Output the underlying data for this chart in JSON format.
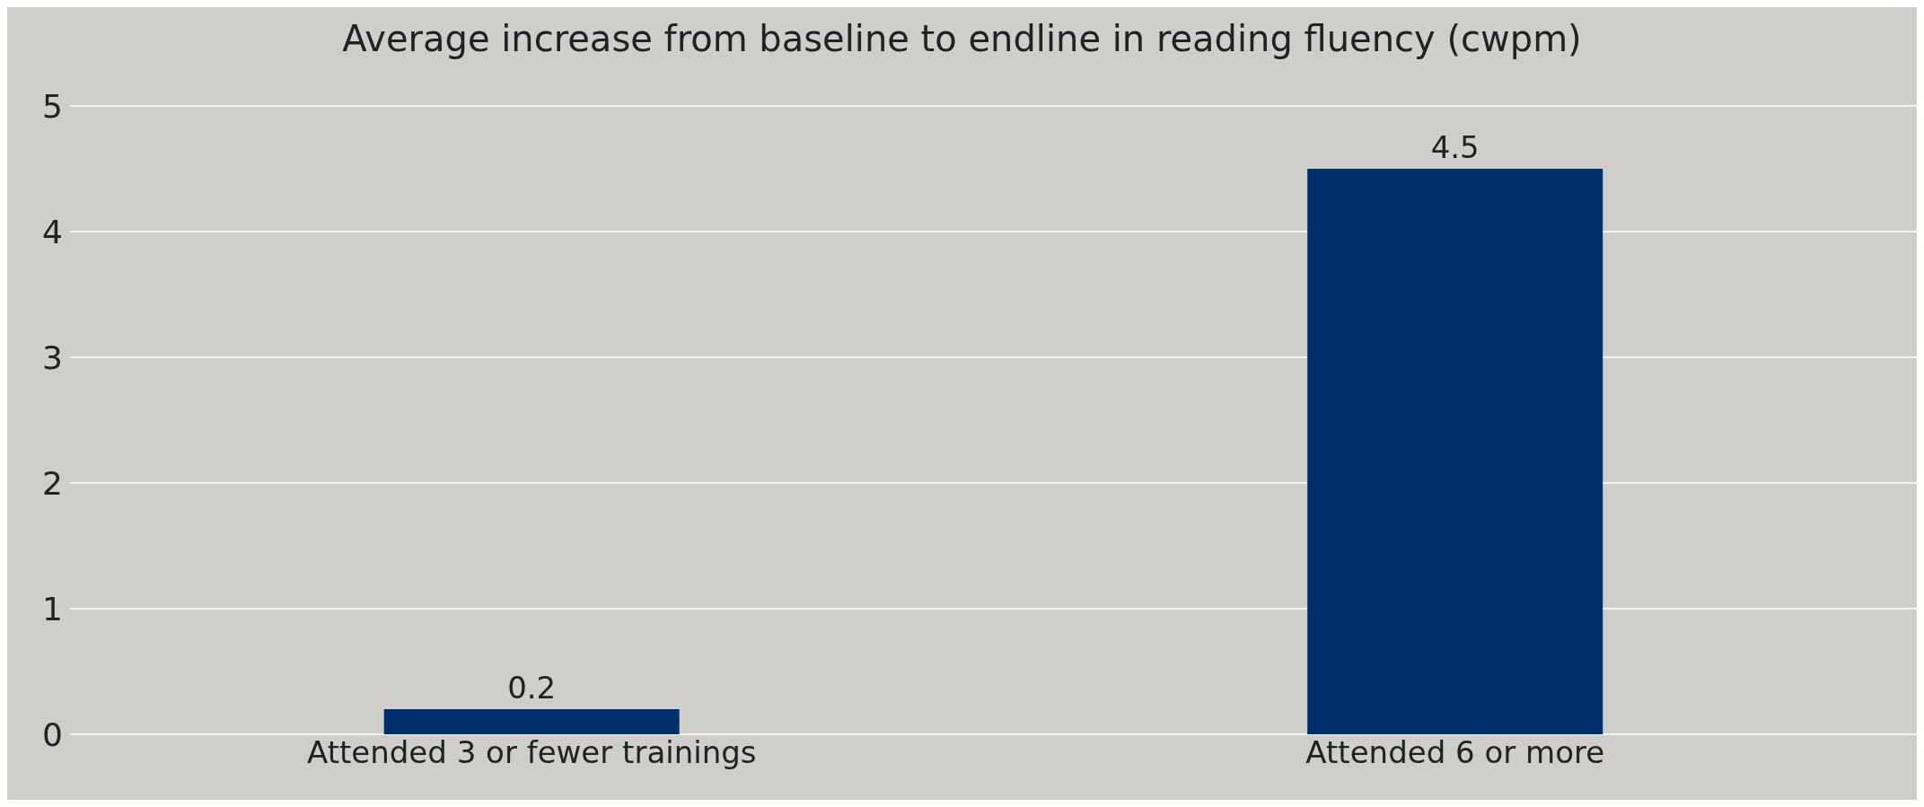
{
  "chart_data": {
    "type": "bar",
    "title": "Average increase from baseline to endline in reading fluency (cwpm)",
    "categories": [
      "Attended 3 or fewer trainings",
      "Attended 6 or more"
    ],
    "values": [
      0.2,
      4.5
    ],
    "color": "#002f6c",
    "ylim": [
      0,
      5
    ],
    "yticks": [
      0,
      1,
      2,
      3,
      4,
      5
    ],
    "grid": "y",
    "data_labels": true
  }
}
